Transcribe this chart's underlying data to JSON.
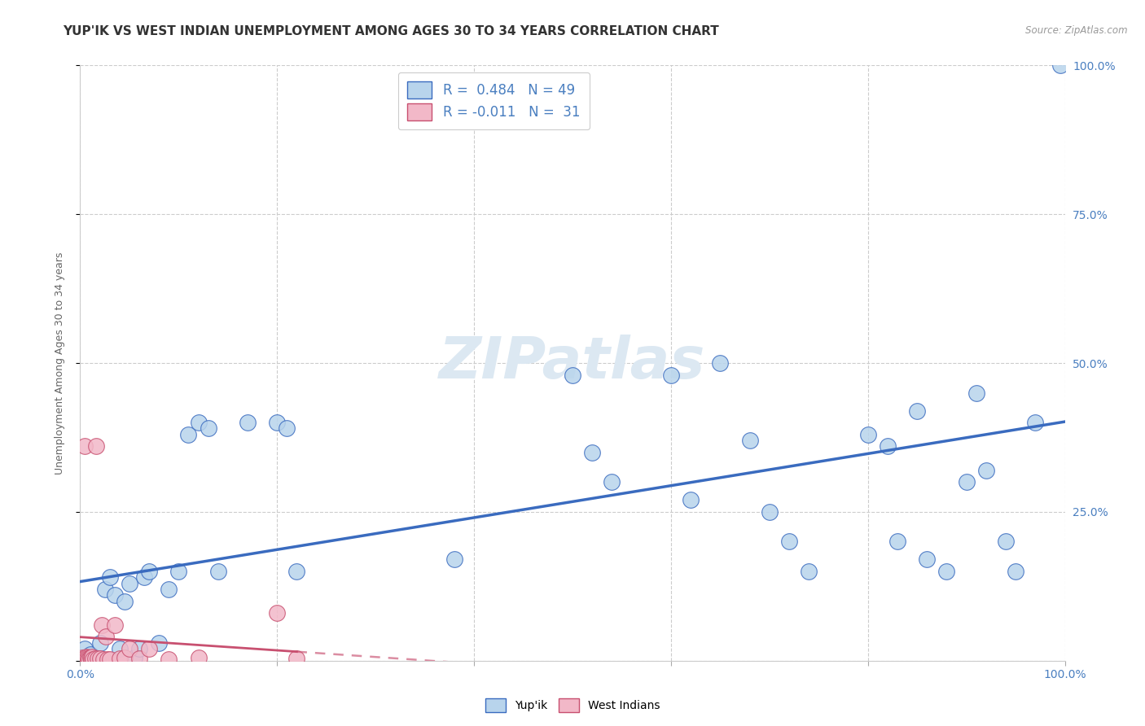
{
  "title": "YUP'IK VS WEST INDIAN UNEMPLOYMENT AMONG AGES 30 TO 34 YEARS CORRELATION CHART",
  "source": "Source: ZipAtlas.com",
  "ylabel": "Unemployment Among Ages 30 to 34 years",
  "yup_R": 0.484,
  "yup_N": 49,
  "wi_R": -0.011,
  "wi_N": 31,
  "yup_color": "#b8d4ec",
  "wi_color": "#f2b8c8",
  "yup_line_color": "#3a6bbf",
  "wi_line_color": "#c85070",
  "watermark_color": "#dce8f2",
  "yup_x": [
    0.005,
    0.01,
    0.015,
    0.02,
    0.025,
    0.03,
    0.035,
    0.04,
    0.045,
    0.05,
    0.055,
    0.06,
    0.065,
    0.07,
    0.08,
    0.09,
    0.1,
    0.11,
    0.12,
    0.13,
    0.14,
    0.17,
    0.2,
    0.21,
    0.22,
    0.38,
    0.5,
    0.52,
    0.54,
    0.6,
    0.62,
    0.65,
    0.68,
    0.7,
    0.72,
    0.74,
    0.8,
    0.82,
    0.83,
    0.85,
    0.86,
    0.88,
    0.9,
    0.91,
    0.92,
    0.94,
    0.95,
    0.97,
    0.995
  ],
  "yup_y": [
    0.02,
    0.01,
    0.005,
    0.03,
    0.12,
    0.14,
    0.11,
    0.02,
    0.1,
    0.13,
    0.005,
    0.02,
    0.14,
    0.15,
    0.03,
    0.12,
    0.15,
    0.38,
    0.4,
    0.39,
    0.15,
    0.4,
    0.4,
    0.39,
    0.15,
    0.17,
    0.48,
    0.35,
    0.3,
    0.48,
    0.27,
    0.5,
    0.37,
    0.25,
    0.2,
    0.15,
    0.38,
    0.36,
    0.2,
    0.42,
    0.17,
    0.15,
    0.3,
    0.45,
    0.32,
    0.2,
    0.15,
    0.4,
    1.0
  ],
  "wi_x": [
    0.002,
    0.003,
    0.004,
    0.005,
    0.006,
    0.007,
    0.008,
    0.009,
    0.01,
    0.011,
    0.012,
    0.013,
    0.015,
    0.016,
    0.018,
    0.02,
    0.022,
    0.024,
    0.026,
    0.028,
    0.03,
    0.035,
    0.04,
    0.045,
    0.05,
    0.06,
    0.07,
    0.09,
    0.12,
    0.2,
    0.22
  ],
  "wi_y": [
    0.005,
    0.003,
    0.004,
    0.36,
    0.006,
    0.005,
    0.004,
    0.003,
    0.005,
    0.004,
    0.007,
    0.003,
    0.004,
    0.36,
    0.004,
    0.004,
    0.06,
    0.003,
    0.04,
    0.003,
    0.003,
    0.06,
    0.004,
    0.005,
    0.02,
    0.004,
    0.02,
    0.003,
    0.005,
    0.08,
    0.004
  ],
  "xlim": [
    0.0,
    1.0
  ],
  "ylim": [
    0.0,
    1.0
  ],
  "yticks": [
    0.0,
    0.25,
    0.5,
    0.75,
    1.0
  ],
  "ytick_labels_right": [
    "",
    "25.0%",
    "50.0%",
    "75.0%",
    "100.0%"
  ],
  "xticks": [
    0.0,
    0.2,
    0.4,
    0.6,
    0.8,
    1.0
  ],
  "xtick_labels": [
    "0.0%",
    "",
    "",
    "",
    "",
    "100.0%"
  ],
  "grid_color": "#cccccc",
  "bg_color": "#ffffff",
  "title_fontsize": 11,
  "axis_label_fontsize": 9,
  "tick_fontsize": 10,
  "legend_fontsize": 12
}
